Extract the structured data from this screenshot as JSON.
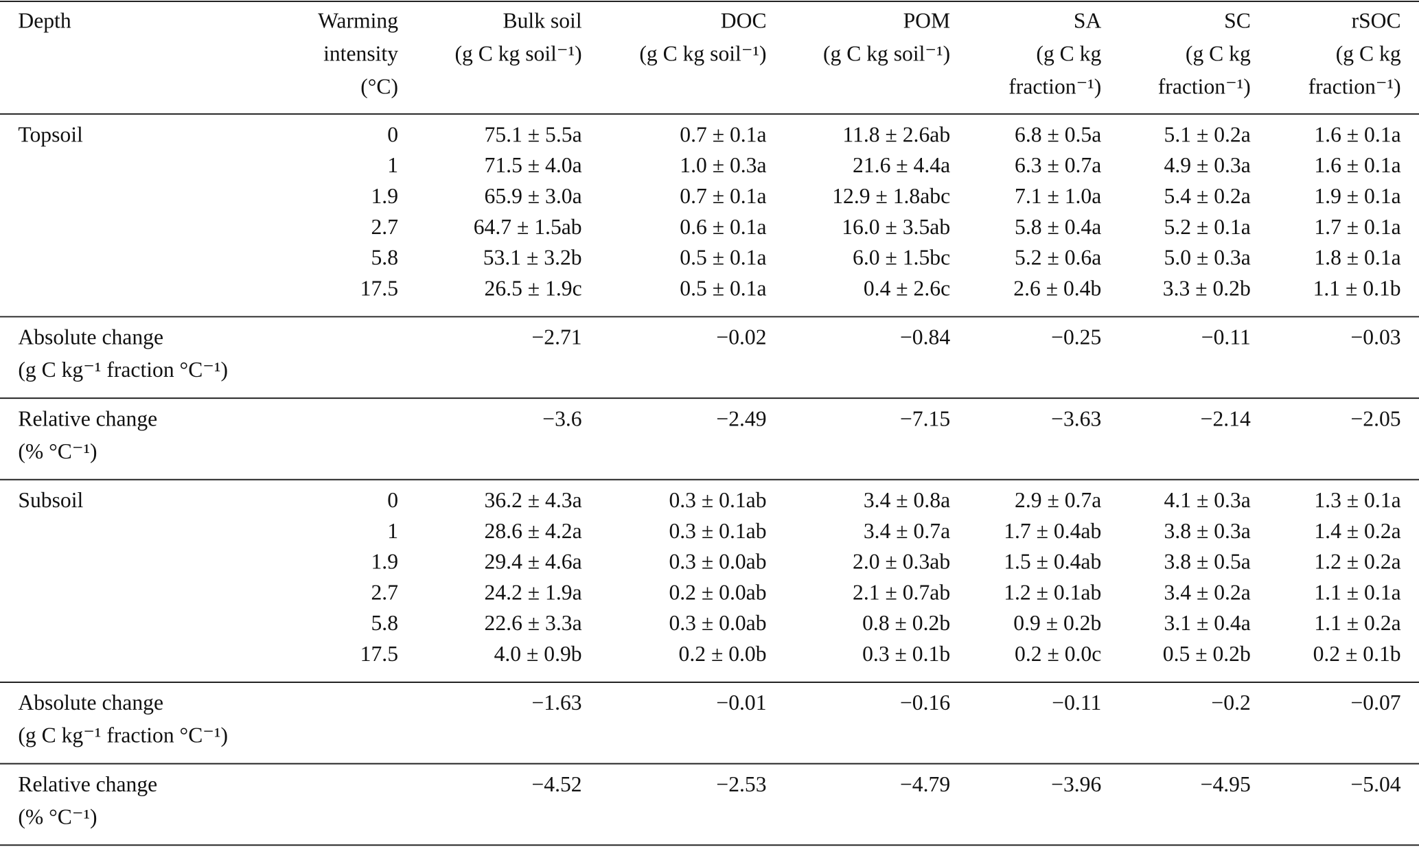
{
  "table": {
    "header": [
      [
        "Depth"
      ],
      [
        "Warming",
        "intensity",
        "(°C)"
      ],
      [
        "Bulk soil",
        "(g C kg soil⁻¹)"
      ],
      [
        "DOC",
        "(g C kg soil⁻¹)"
      ],
      [
        "POM",
        "(g C kg soil⁻¹)"
      ],
      [
        "SA",
        "(g C kg",
        "fraction⁻¹)"
      ],
      [
        "SC",
        "(g C kg",
        "fraction⁻¹)"
      ],
      [
        "rSOC",
        "(g C kg",
        "fraction⁻¹)"
      ]
    ],
    "sections": [
      {
        "depth": "Topsoil",
        "rows": [
          [
            "0",
            "75.1 ± 5.5a",
            "0.7 ± 0.1a",
            "11.8 ± 2.6ab",
            "6.8 ± 0.5a",
            "5.1 ± 0.2a",
            "1.6 ± 0.1a"
          ],
          [
            "1",
            "71.5 ± 4.0a",
            "1.0 ± 0.3a",
            "21.6 ± 4.4a",
            "6.3 ± 0.7a",
            "4.9 ± 0.3a",
            "1.6 ± 0.1a"
          ],
          [
            "1.9",
            "65.9 ± 3.0a",
            "0.7 ± 0.1a",
            "12.9 ± 1.8abc",
            "7.1 ± 1.0a",
            "5.4 ± 0.2a",
            "1.9 ± 0.1a"
          ],
          [
            "2.7",
            "64.7 ± 1.5ab",
            "0.6 ± 0.1a",
            "16.0 ± 3.5ab",
            "5.8 ± 0.4a",
            "5.2 ± 0.1a",
            "1.7 ± 0.1a"
          ],
          [
            "5.8",
            "53.1 ± 3.2b",
            "0.5 ± 0.1a",
            "6.0 ± 1.5bc",
            "5.2 ± 0.6a",
            "5.0 ± 0.3a",
            "1.8 ± 0.1a"
          ],
          [
            "17.5",
            "26.5 ± 1.9c",
            "0.5 ± 0.1a",
            "0.4 ± 2.6c",
            "2.6 ± 0.4b",
            "3.3 ± 0.2b",
            "1.1 ± 0.1b"
          ]
        ]
      },
      {
        "label": [
          "Absolute change",
          "(g C kg⁻¹ fraction °C⁻¹)"
        ],
        "values": [
          "−2.71",
          "−0.02",
          "−0.84",
          "−0.25",
          "−0.11",
          "−0.03"
        ]
      },
      {
        "label": [
          "Relative change",
          "(% °C⁻¹)"
        ],
        "values": [
          "−3.6",
          "−2.49",
          "−7.15",
          "−3.63",
          "−2.14",
          "−2.05"
        ]
      },
      {
        "depth": "Subsoil",
        "rows": [
          [
            "0",
            "36.2 ± 4.3a",
            "0.3 ± 0.1ab",
            "3.4 ± 0.8a",
            "2.9 ± 0.7a",
            "4.1 ± 0.3a",
            "1.3 ± 0.1a"
          ],
          [
            "1",
            "28.6 ± 4.2a",
            "0.3 ± 0.1ab",
            "3.4 ± 0.7a",
            "1.7 ± 0.4ab",
            "3.8 ± 0.3a",
            "1.4 ± 0.2a"
          ],
          [
            "1.9",
            "29.4 ± 4.6a",
            "0.3 ± 0.0ab",
            "2.0 ± 0.3ab",
            "1.5 ± 0.4ab",
            "3.8 ± 0.5a",
            "1.2 ± 0.2a"
          ],
          [
            "2.7",
            "24.2 ± 1.9a",
            "0.2 ± 0.0ab",
            "2.1 ± 0.7ab",
            "1.2 ± 0.1ab",
            "3.4 ± 0.2a",
            "1.1 ± 0.1a"
          ],
          [
            "5.8",
            "22.6 ± 3.3a",
            "0.3 ± 0.0ab",
            "0.8 ± 0.2b",
            "0.9 ± 0.2b",
            "3.1 ± 0.4a",
            "1.1 ± 0.2a"
          ],
          [
            "17.5",
            "4.0 ± 0.9b",
            "0.2 ± 0.0b",
            "0.3 ± 0.1b",
            "0.2 ± 0.0c",
            "0.5 ± 0.2b",
            "0.2 ± 0.1b"
          ]
        ]
      },
      {
        "label": [
          "Absolute change",
          "(g C kg⁻¹ fraction °C⁻¹)"
        ],
        "values": [
          "−1.63",
          "−0.01",
          "−0.16",
          "−0.11",
          "−0.2",
          "−0.07"
        ]
      },
      {
        "label": [
          "Relative change",
          "(% °C⁻¹)"
        ],
        "values": [
          "−4.52",
          "−2.53",
          "−4.79",
          "−3.96",
          "−4.95",
          "−5.04"
        ]
      }
    ]
  }
}
